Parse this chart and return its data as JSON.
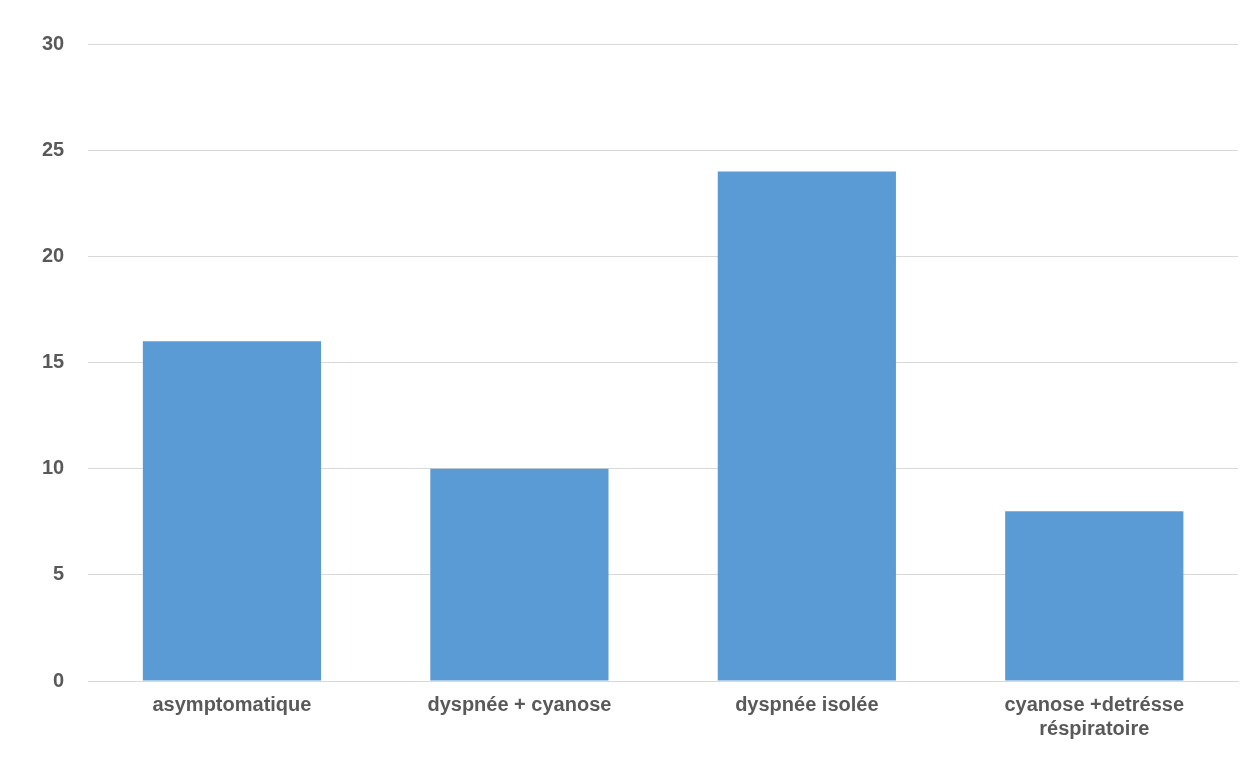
{
  "chart_data": {
    "type": "bar",
    "categories": [
      "asymptomatique",
      "dyspnée + cyanose",
      "dyspnée isolée",
      "cyanose +detrésse réspiratoire"
    ],
    "values": [
      16,
      10,
      24,
      8
    ],
    "color": "#5b9bd5",
    "ylim": [
      0,
      30
    ],
    "yticks": [
      0,
      5,
      10,
      15,
      20,
      25,
      30
    ],
    "grid": "y",
    "legend": false
  }
}
